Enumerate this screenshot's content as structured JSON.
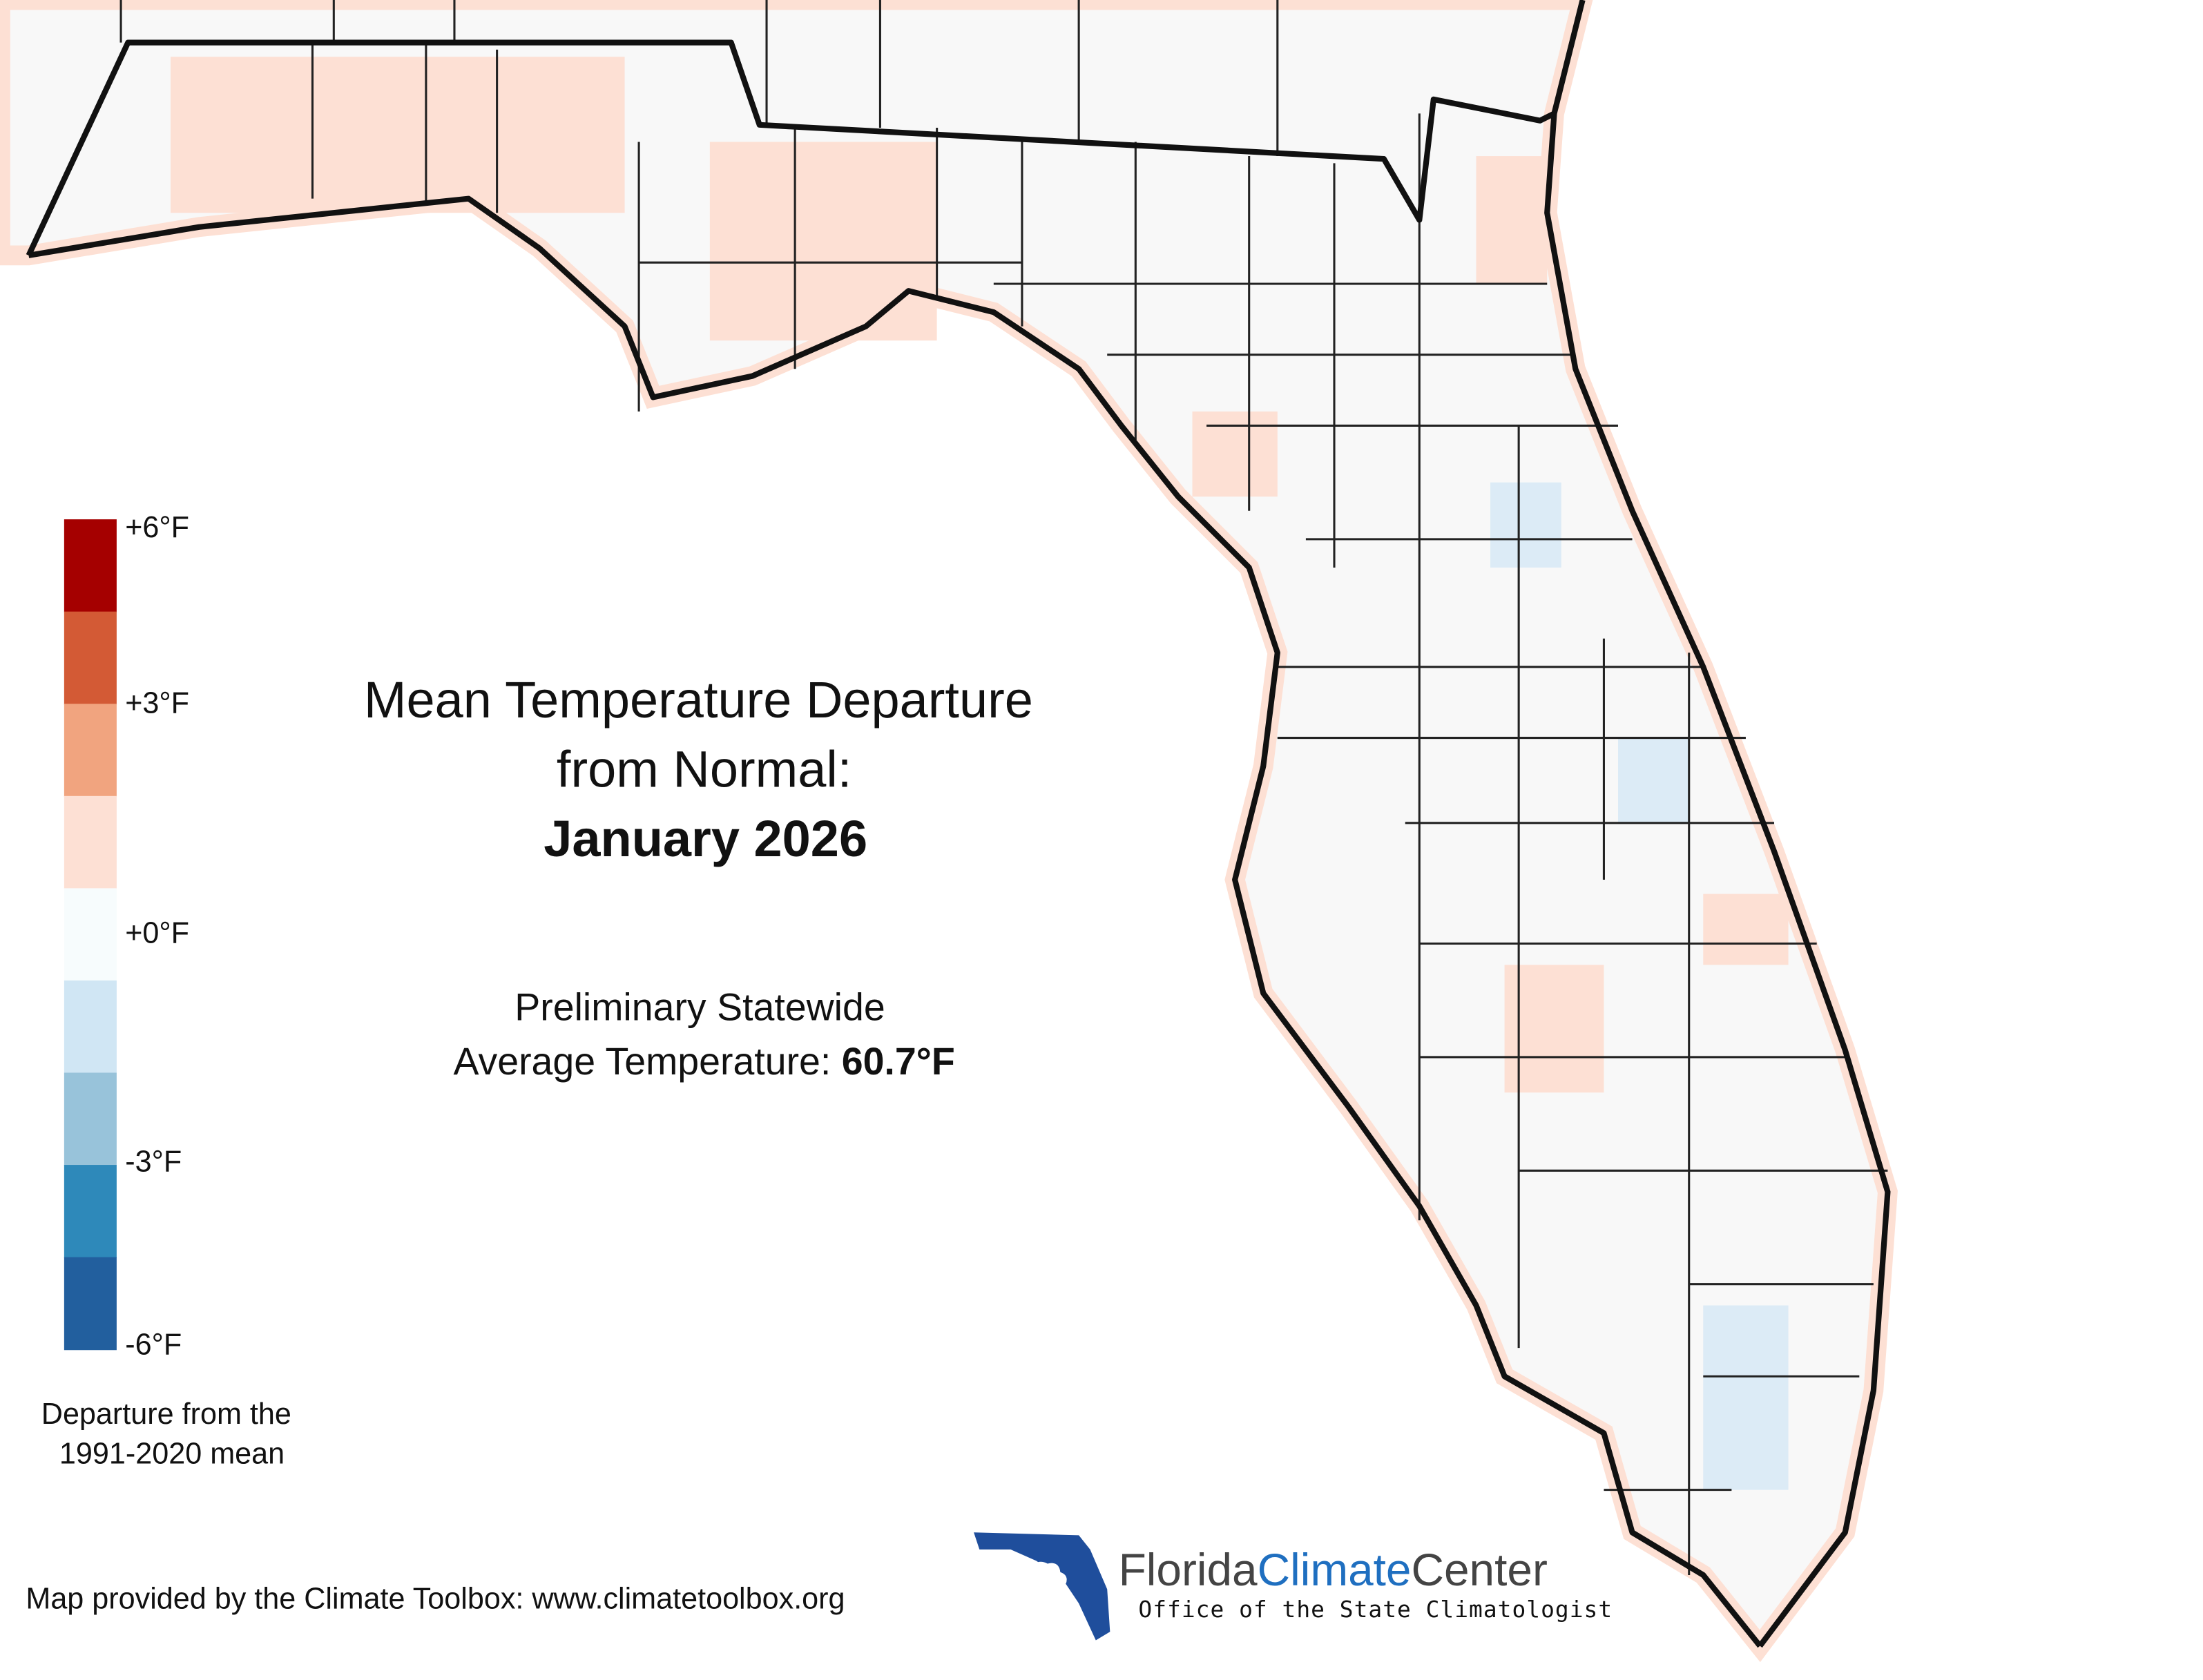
{
  "map": {
    "title": [
      "Mean Temperature Departure",
      "from Normal:",
      "January 2026"
    ],
    "subtitle": "Preliminary Statewide",
    "average": {
      "label": "Average Temperature:",
      "value": "60.7°F"
    },
    "legend": {
      "colors": [
        "#a50000",
        "#d35a35",
        "#f1a47f",
        "#fde0d4",
        "#f7fcfd",
        "#d0e6f4",
        "#98c3da",
        "#2e89ba",
        "#225f9e"
      ],
      "labels": [
        "+6°F",
        "+3°F",
        "+0°F",
        "-3°F",
        "-6°F"
      ],
      "caption": [
        "Departure from the",
        "1991-2020 mean"
      ]
    },
    "credit": "Map provided by the Climate Toolbox: www.climatetoolbox.org",
    "logo": {
      "name": [
        "Florida",
        "Climate",
        "Center"
      ],
      "tagline": "Office of the State Climatologist"
    }
  }
}
